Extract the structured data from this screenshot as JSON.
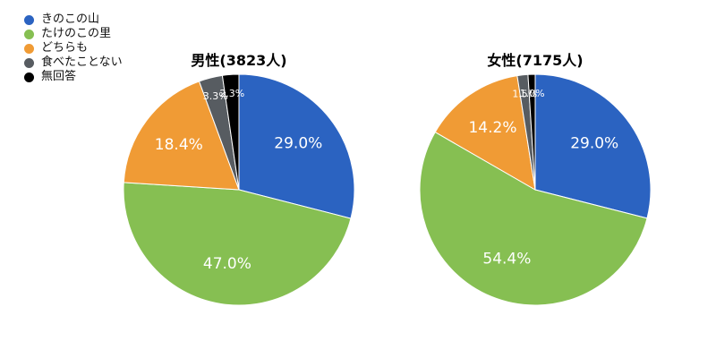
{
  "legend": [
    {
      "label": "きのこの山",
      "color": "#2b63c1"
    },
    {
      "label": "たけのこの里",
      "color": "#86bf52"
    },
    {
      "label": "どちらも",
      "color": "#f09b35"
    },
    {
      "label": "食べたことない",
      "color": "#575c61"
    },
    {
      "label": "無回答",
      "color": "#000000"
    }
  ],
  "chart_data": [
    {
      "type": "pie",
      "title": "男性(3823人)",
      "categories": [
        "きのこの山",
        "たけのこの里",
        "どちらも",
        "食べたことない",
        "無回答"
      ],
      "values": [
        29.0,
        47.0,
        18.4,
        3.3,
        2.3
      ],
      "labels": [
        "29.0%",
        "47.0%",
        "18.4%",
        "3.3%",
        "2.3%"
      ],
      "legend_position": "top-left"
    },
    {
      "type": "pie",
      "title": "女性(7175人)",
      "categories": [
        "きのこの山",
        "たけのこの里",
        "どちらも",
        "食べたことない",
        "無回答"
      ],
      "values": [
        29.0,
        54.4,
        14.2,
        1.5,
        1.0
      ],
      "labels": [
        "29.0%",
        "54.4%",
        "14.2%",
        "1.5%",
        "1.0%"
      ],
      "legend_position": "top-left"
    }
  ]
}
